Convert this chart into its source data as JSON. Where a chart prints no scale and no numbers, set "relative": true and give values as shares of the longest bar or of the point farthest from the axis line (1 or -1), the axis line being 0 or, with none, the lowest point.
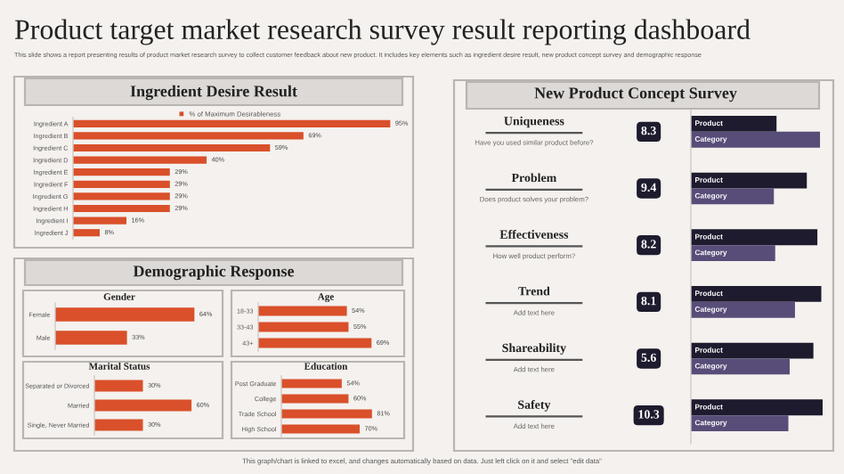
{
  "chart_data": [
    {
      "type": "other",
      "title": "Product target market research survey result reporting dashboard",
      "subtitle": "This slide shows a report presenting results of product market research survey to collect customer feedback about new product. It includes key elements such as ingredient desire result, new product concept survey and demographic response",
      "annotations": [
        "This graph/chart is linked to excel, and changes automatically based on data. Just left click on it and select \"edit data\""
      ]
    },
    {
      "type": "bar",
      "orientation": "horizontal",
      "title": "Ingredient Desire Result",
      "categories": [
        "Ingredient A",
        "Ingredient B",
        "Ingredient C",
        "Ingredient D",
        "Ingredient E",
        "Ingredient F",
        "Ingredient G",
        "Ingredient H",
        "Ingredient I",
        "Ingredient J"
      ],
      "series": [
        {
          "name": "% of Maximum Desirableness",
          "color": "#d9502a",
          "values": [
            95,
            69,
            59,
            40,
            29,
            29,
            29,
            29,
            16,
            8
          ],
          "value_labels": [
            "95%",
            "69%",
            "59%",
            "40%",
            "29%",
            "29%",
            "29%",
            "29%",
            "16%",
            "8%"
          ]
        }
      ],
      "legend": "top"
    },
    {
      "type": "other",
      "title": "Demographic Response"
    },
    {
      "type": "bar",
      "orientation": "horizontal",
      "title": "Gender",
      "categories": [
        "Female",
        "Male"
      ],
      "series": [
        {
          "color": "#d9502a",
          "values": [
            64,
            33
          ],
          "value_labels": [
            "64%",
            "33%"
          ]
        }
      ]
    },
    {
      "type": "bar",
      "orientation": "horizontal",
      "title": "Age",
      "categories": [
        "18-33",
        "33-43",
        "43+"
      ],
      "series": [
        {
          "color": "#d9502a",
          "values": [
            54,
            55,
            69
          ],
          "value_labels": [
            "54%",
            "55%",
            "69%"
          ]
        }
      ]
    },
    {
      "type": "bar",
      "orientation": "horizontal",
      "title": "Marital Status",
      "categories": [
        "Separated or Divorced",
        "Married",
        "Single, Never Married"
      ],
      "series": [
        {
          "color": "#d9502a",
          "values": [
            30,
            60,
            30
          ],
          "value_labels": [
            "30%",
            "60%",
            "30%"
          ]
        }
      ]
    },
    {
      "type": "bar",
      "orientation": "horizontal",
      "title": "Education",
      "categories": [
        "Post Graduate",
        "College",
        "Trade School",
        "High School"
      ],
      "series": [
        {
          "color": "#d9502a",
          "values": [
            54,
            60,
            81,
            70
          ],
          "value_labels": [
            "54%",
            "60%",
            "81%",
            "70%"
          ]
        }
      ]
    },
    {
      "type": "bar",
      "orientation": "horizontal",
      "relative": true,
      "title": "New Product Concept Survey",
      "categories": [
        "Uniqueness",
        "Problem",
        "Effectiveness",
        "Trend",
        "Shareability",
        "Safety"
      ],
      "series": [
        {
          "name": "Product",
          "color": "#1e1b2e",
          "values": [
            0.65,
            0.88,
            0.96,
            0.99,
            0.93,
            1.0
          ]
        },
        {
          "name": "Category",
          "color": "#584d78",
          "values": [
            0.98,
            0.63,
            0.64,
            0.79,
            0.75,
            0.74
          ]
        }
      ],
      "annotations": [
        "Have you used similar product before?",
        "Does product solves your problem?",
        "How well product perform?",
        "Add text here",
        "Add text here",
        "Add text here",
        "8.3",
        "9.4",
        "8.2",
        "8.1",
        "5.6",
        "10.3"
      ]
    }
  ]
}
